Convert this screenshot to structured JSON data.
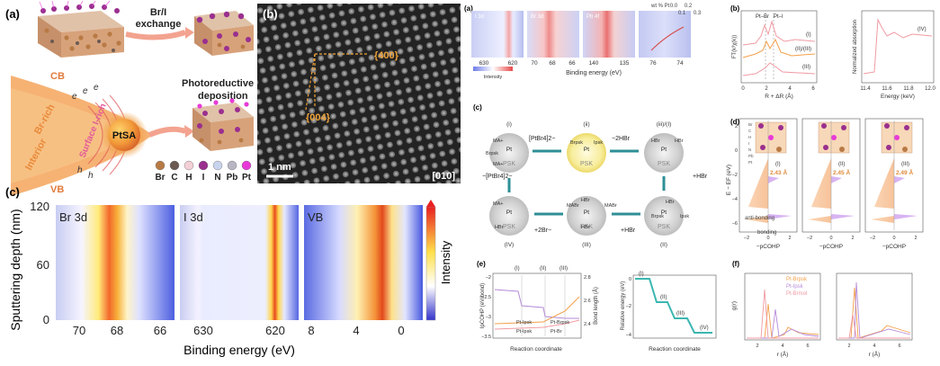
{
  "left": {
    "panel_a": {
      "label": "(a)",
      "exchange_text_1": "Br/I",
      "exchange_text_2": "exchange",
      "photo_text_1": "Photoreductive",
      "photo_text_2": "deposition",
      "cb": "CB",
      "vb": "VB",
      "interior": "Interior",
      "br_rich": "Br-rich",
      "surface": "Surface I-rich",
      "ptsa": "PtSA",
      "e": "e",
      "h": "h",
      "legend": [
        {
          "sym": "Br",
          "color": "#b87a45"
        },
        {
          "sym": "C",
          "color": "#6a5a52"
        },
        {
          "sym": "H",
          "color": "#f2d0d6"
        },
        {
          "sym": "I",
          "color": "#9a2f8f"
        },
        {
          "sym": "N",
          "color": "#c8d4ee"
        },
        {
          "sym": "Pb",
          "color": "#b8b6c2"
        },
        {
          "sym": "Pt",
          "color": "#e83ad8"
        }
      ]
    },
    "panel_b": {
      "label": "(b)",
      "plane1": "{400}",
      "plane2": "{004}",
      "scale": "1 nm",
      "zone": "[010]"
    },
    "panel_c": {
      "label": "(c)",
      "ylabel": "Sputtering depth (nm)",
      "xlabel": "Binding energy (eV)",
      "colorbar_label": "Intensity",
      "yticks": [
        "120",
        "60",
        "0"
      ],
      "maps": [
        {
          "title": "Br 3d",
          "xticks": [
            "70",
            "68",
            "66"
          ]
        },
        {
          "title": "I 3d",
          "xticks": [
            "630",
            "620"
          ]
        },
        {
          "title": "VB",
          "xticks": [
            "8",
            "4",
            "0"
          ]
        }
      ]
    }
  },
  "right": {
    "a": {
      "label": "(a)",
      "xlabel": "Binding energy (eV)",
      "intensity": "Intensity",
      "topaxis": "wt % Pt",
      "topticks": [
        "0.0",
        "0.1",
        "0.2",
        "0.3"
      ],
      "maps": [
        {
          "title": "I 3d",
          "ticks": [
            "630",
            "620"
          ]
        },
        {
          "title": "Br 3d",
          "ticks": [
            "70",
            "68",
            "66"
          ]
        },
        {
          "title": "Pb 4f",
          "ticks": [
            "140",
            "135"
          ]
        },
        {
          "title": "",
          "ticks": [
            "76",
            "74"
          ]
        }
      ]
    },
    "b": {
      "label": "(b)",
      "ylabel_left": "FT(k³χ(k))",
      "xlabel_left": "R + ΔR (Å)",
      "xticks_left": [
        "0",
        "2",
        "4",
        "6"
      ],
      "peaks": [
        "Pt–Br",
        "Pt–I"
      ],
      "curves": [
        "(I)",
        "(II)/(III)",
        "(III)"
      ],
      "ylabel_right": "Normalized absorption",
      "xlabel_right": "Energy (keV)",
      "xticks_right": [
        "11.4",
        "11.6",
        "11.8",
        "12.0"
      ],
      "curve_right": "(IV)"
    },
    "c": {
      "label": "(c)",
      "psk": "PSK",
      "species_top": "[PtBr4]2−",
      "minus_2hbr": "−2HBr",
      "plus_hbr_1": "+HBr",
      "plus_hbr_2": "+HBr",
      "plus_2br": "+2Br−",
      "minus_ptbr4": "−[PtBr4]2−",
      "states": [
        "(i)",
        "(ii)",
        "(iii)/(I)",
        "(IV)",
        "(III)",
        "(II)"
      ],
      "ma": "MA+",
      "mabr": "MABr",
      "hbr": "HBr",
      "brpsk": "Brpsk",
      "ipsk": "Ipsk",
      "pt": "Pt"
    },
    "d": {
      "label": "(d)",
      "ylabel": "E − EF (eV)",
      "xlabel": "−pCOHP",
      "yticks": [
        "2",
        "0",
        "−2",
        "−4",
        "−6"
      ],
      "xticks": [
        "−2",
        "0",
        "2"
      ],
      "antibonding": "anti-bonding",
      "bonding": "bonding",
      "panels": [
        {
          "id": "(I)",
          "dist": "2.43 Å"
        },
        {
          "id": "(II)",
          "dist": "2.45 Å"
        },
        {
          "id": "(III)",
          "dist": "2.49 Å"
        }
      ],
      "legend": [
        "Br",
        "C",
        "H",
        "I",
        "N",
        "Pb",
        "Pt"
      ]
    },
    "e": {
      "label": "(e)",
      "ylabel_left": "IpCOHP (eV/bond)",
      "ylabel_right": "Bond length (Å)",
      "xlabel": "Reaction coordinate",
      "yticks_left": [
        "−2",
        "−2.5",
        "−3",
        "−3.5"
      ],
      "yticks_right": [
        "2.8",
        "2.6",
        "2.4"
      ],
      "phases": [
        "(I)",
        "(II)",
        "(III)"
      ],
      "legend": [
        "Pt-Ipsk",
        "Pt-Brpsk",
        "Pt-Ipsk",
        "Pt-Br"
      ],
      "ylabel2": "Relative energy (eV)",
      "xlabel2": "Reaction coordinate",
      "yticks2": [
        "0",
        "−2",
        "−4"
      ],
      "steps": [
        "(I)",
        "(II)",
        "(III)",
        "(IV)"
      ]
    },
    "f": {
      "label": "(f)",
      "ylabel": "g(r)",
      "xlabel": "r (Å)",
      "xticks": [
        "2",
        "4",
        "6"
      ],
      "legend": [
        "Pt-Brpsk",
        "Pt-Ipsk",
        "Pt-Brmol"
      ]
    }
  }
}
